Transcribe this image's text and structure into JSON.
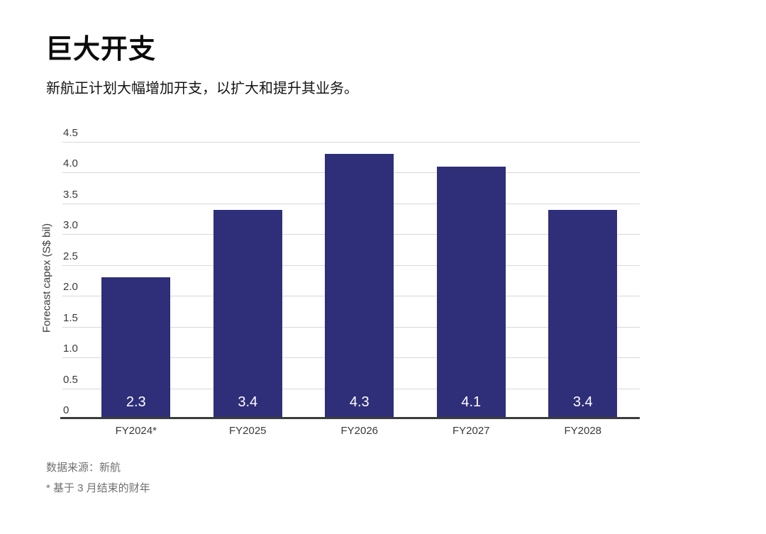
{
  "header": {
    "title": "巨大开支",
    "subtitle": "新航正计划大幅增加开支，以扩大和提升其业务。"
  },
  "chart_data": {
    "type": "bar",
    "title": "巨大开支",
    "subtitle": "新航正计划大幅增加开支，以扩大和提升其业务。",
    "categories": [
      "FY2024*",
      "FY2025",
      "FY2026",
      "FY2027",
      "FY2028"
    ],
    "values": [
      2.3,
      3.4,
      4.3,
      4.1,
      3.4
    ],
    "value_labels": [
      "2.3",
      "3.4",
      "4.3",
      "4.1",
      "3.4"
    ],
    "xlabel": "",
    "ylabel": "Forecast capex (S$ bil)",
    "ylim": [
      0,
      4.5
    ],
    "yticks": [
      {
        "v": 4.5,
        "label": "4.5"
      },
      {
        "v": 4.0,
        "label": "4.0"
      },
      {
        "v": 3.5,
        "label": "3.5"
      },
      {
        "v": 3.0,
        "label": "3.0"
      },
      {
        "v": 2.5,
        "label": "2.5"
      },
      {
        "v": 2.0,
        "label": "2.0"
      },
      {
        "v": 1.5,
        "label": "1.5"
      },
      {
        "v": 1.0,
        "label": "1.0"
      },
      {
        "v": 0.5,
        "label": "0.5"
      },
      {
        "v": 0,
        "label": "0"
      }
    ],
    "grid": "horizontal",
    "legend": "none",
    "value_label_position": "inside-bottom"
  },
  "colors": {
    "bar": "#2f2e79",
    "grid": "#d8d8d8",
    "axis": "#3c3c3c",
    "tick_text": "#3a3a3a",
    "value_label": "#ffffff",
    "title_text": "#0b0b0b",
    "subtitle_text": "#141414",
    "footer_text": "#707070"
  },
  "footer": {
    "source": "数据来源：新航",
    "note": "* 基于 3 月结束的财年"
  }
}
